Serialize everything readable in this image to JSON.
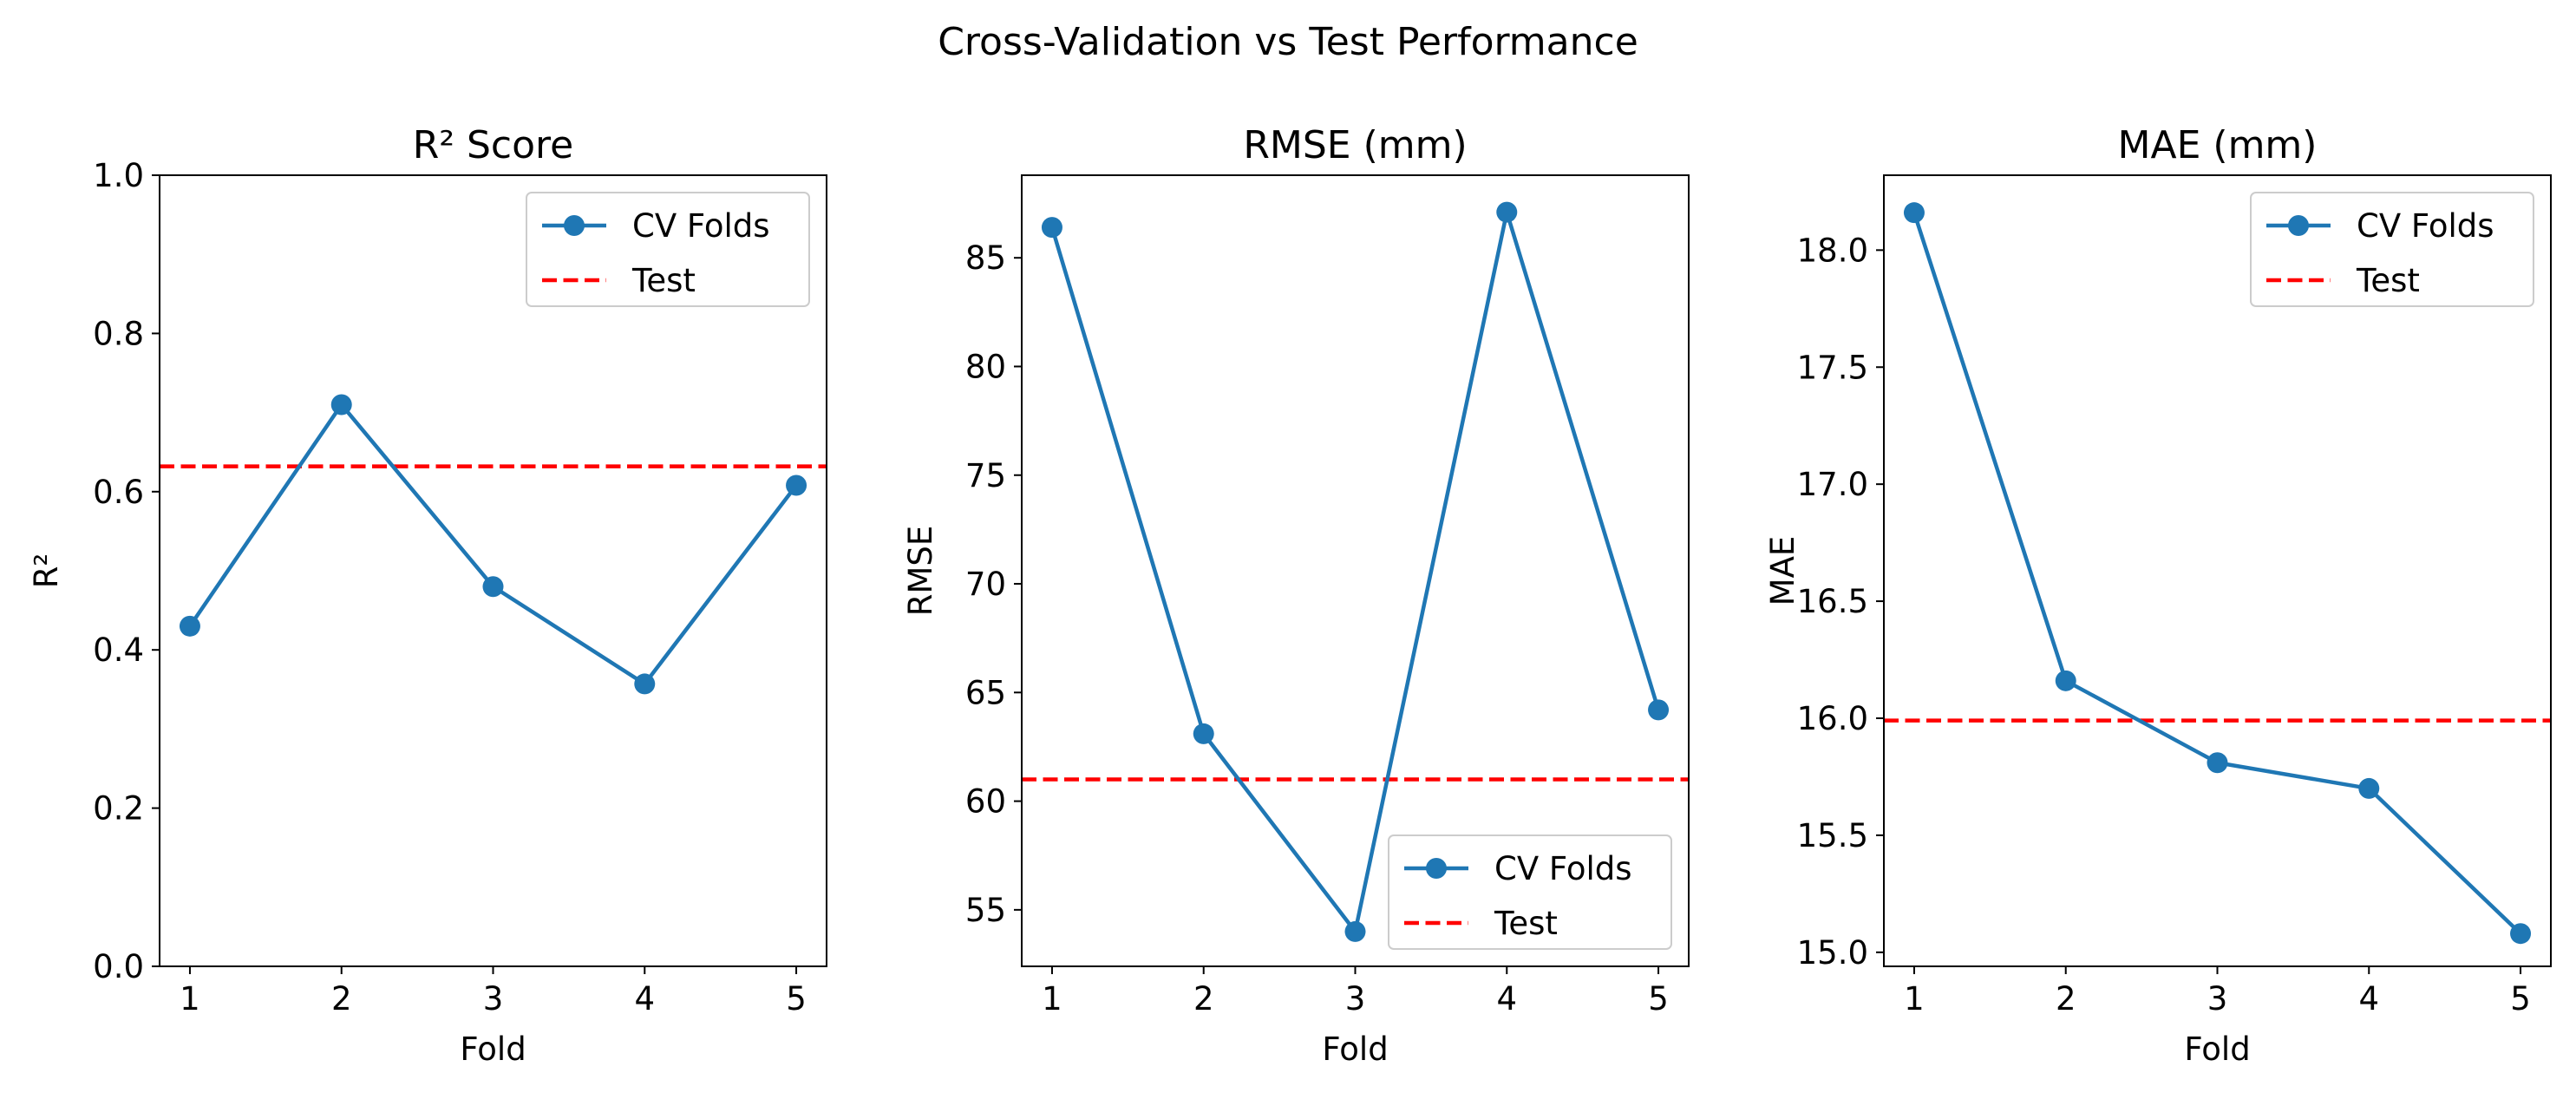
{
  "suptitle": "Cross-Validation vs Test Performance",
  "legend_labels": {
    "cv": "CV Folds",
    "test": "Test"
  },
  "colors": {
    "cv": "#1f77b4",
    "test": "#ff0000"
  },
  "chart_data": [
    {
      "type": "line",
      "title": "R² Score",
      "xlabel": "Fold",
      "ylabel": "R²",
      "x": [
        1,
        2,
        3,
        4,
        5
      ],
      "xlim": [
        0.8,
        5.2
      ],
      "ylim": [
        0.0,
        1.0
      ],
      "yticks": [
        "0.0",
        "0.2",
        "0.4",
        "0.6",
        "0.8",
        "1.0"
      ],
      "series": [
        {
          "name": "CV Folds",
          "values": [
            0.43,
            0.71,
            0.48,
            0.357,
            0.608
          ],
          "style": "line-marker"
        },
        {
          "name": "Test",
          "value": 0.632,
          "style": "dashed-horizontal"
        }
      ],
      "legend": "upper right"
    },
    {
      "type": "line",
      "title": "RMSE (mm)",
      "xlabel": "Fold",
      "ylabel": "RMSE",
      "x": [
        1,
        2,
        3,
        4,
        5
      ],
      "xlim": [
        0.8,
        5.2
      ],
      "ylim": [
        52.4,
        88.8
      ],
      "yticks": [
        "55",
        "60",
        "65",
        "70",
        "75",
        "80",
        "85"
      ],
      "series": [
        {
          "name": "CV Folds",
          "values": [
            86.4,
            63.1,
            54.0,
            87.1,
            64.2
          ],
          "style": "line-marker"
        },
        {
          "name": "Test",
          "value": 61.0,
          "style": "dashed-horizontal"
        }
      ],
      "legend": "lower right"
    },
    {
      "type": "line",
      "title": "MAE (mm)",
      "xlabel": "Fold",
      "ylabel": "MAE",
      "x": [
        1,
        2,
        3,
        4,
        5
      ],
      "xlim": [
        0.8,
        5.2
      ],
      "ylim": [
        14.94,
        18.32
      ],
      "yticks": [
        "15.0",
        "15.5",
        "16.0",
        "16.5",
        "17.0",
        "17.5",
        "18.0"
      ],
      "series": [
        {
          "name": "CV Folds",
          "values": [
            18.16,
            16.16,
            15.81,
            15.7,
            15.08
          ],
          "style": "line-marker"
        },
        {
          "name": "Test",
          "value": 15.99,
          "style": "dashed-horizontal"
        }
      ],
      "legend": "upper right"
    }
  ]
}
